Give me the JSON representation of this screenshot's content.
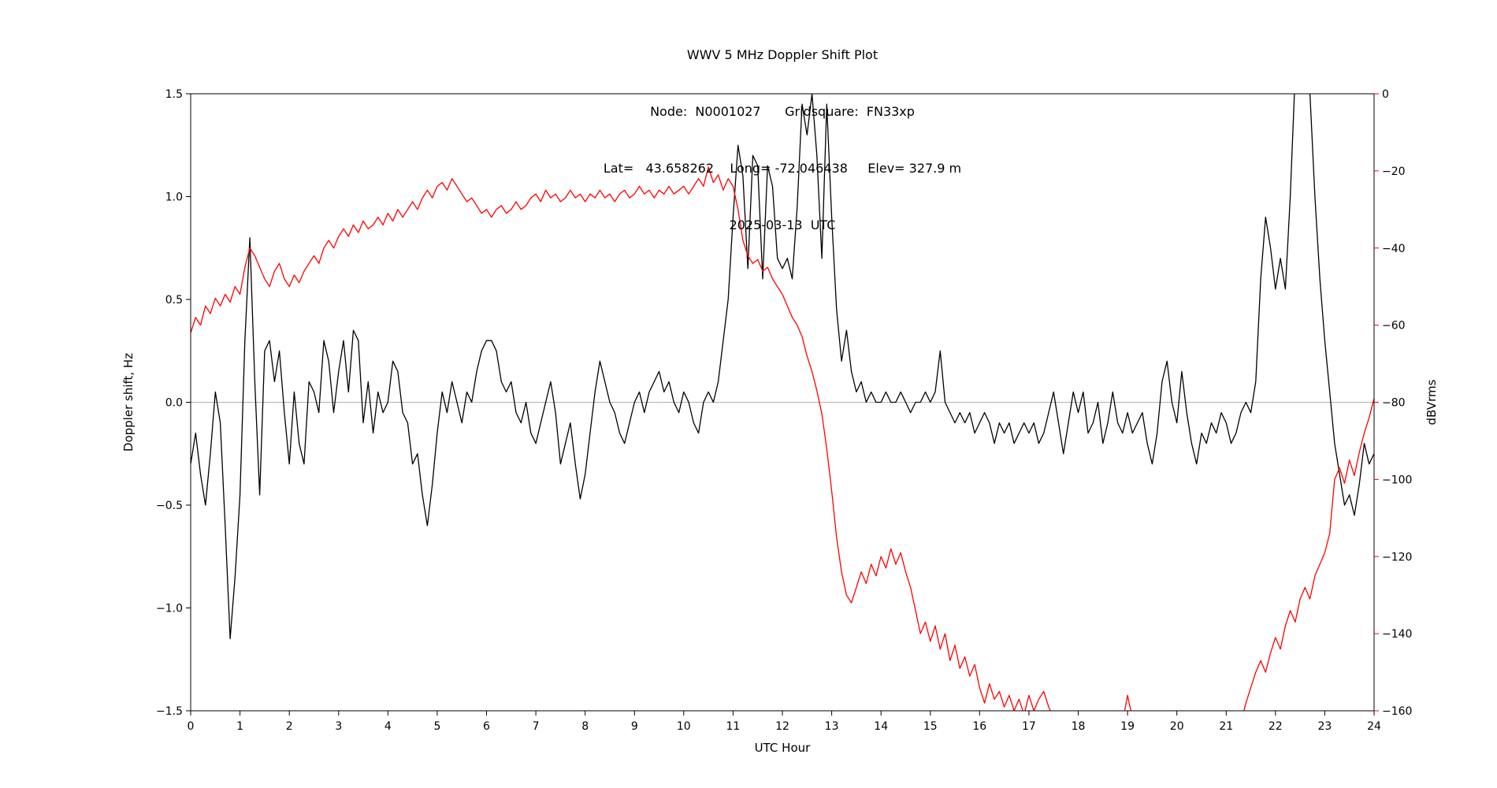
{
  "chart_data": {
    "type": "line",
    "title": "WWV 5 MHz Doppler Shift Plot",
    "title_lines": [
      "WWV 5 MHz Doppler Shift Plot",
      "Node:  N0001027      Gridsquare:  FN33xp",
      "Lat=   43.658262    Long= -72.046438     Elev= 327.9 m",
      "2025-03-13  UTC"
    ],
    "node": "N0001027",
    "gridsquare": "FN33xp",
    "lat": "43.658262",
    "long": "-72.046438",
    "elev": "327.9 m",
    "date": "2025-03-13",
    "timezone": "UTC",
    "xlabel": "UTC Hour",
    "ylabel_left": "Doppler shift, Hz",
    "ylabel_right": "dBVrms",
    "x_range": [
      0,
      24
    ],
    "ylim_left": [
      -1.5,
      1.5
    ],
    "ylim_right": [
      -160,
      0
    ],
    "grid": "single horizontal gray line at 0.0 Hz",
    "legend": "none",
    "x_ticks": [
      0,
      1,
      2,
      3,
      4,
      5,
      6,
      7,
      8,
      9,
      10,
      11,
      12,
      13,
      14,
      15,
      16,
      17,
      18,
      19,
      20,
      21,
      22,
      23,
      24
    ],
    "x_tick_labels": [
      "0",
      "1",
      "2",
      "3",
      "4",
      "5",
      "6",
      "7",
      "8",
      "9",
      "10",
      "11",
      "12",
      "13",
      "14",
      "15",
      "16",
      "17",
      "18",
      "19",
      "20",
      "21",
      "22",
      "23",
      "24"
    ],
    "y_ticks_left": [
      1.5,
      1.0,
      0.5,
      0.0,
      -0.5,
      -1.0,
      -1.5
    ],
    "y_tick_labels_left": [
      "1.5",
      "1.0",
      "0.5",
      "0.0",
      "−0.5",
      "−1.0",
      "−1.5"
    ],
    "y_ticks_right": [
      0,
      -20,
      -40,
      -60,
      -80,
      -100,
      -120,
      -140,
      -160
    ],
    "y_tick_labels_right": [
      "0",
      "−20",
      "−40",
      "−60",
      "−80",
      "−100",
      "−120",
      "−140",
      "−160"
    ],
    "colors": {
      "doppler": "#000000",
      "dbvrms": "#ff0000",
      "zero_line": "#b0b0b0",
      "frame": "#000000"
    },
    "x_hours": {
      "start": 0,
      "step": 0.1,
      "count": 241
    },
    "series": [
      {
        "id": "doppler-shift",
        "name": "Doppler shift, Hz",
        "axis": "left",
        "color": "#000000",
        "values": [
          -0.3,
          -0.15,
          -0.35,
          -0.5,
          -0.25,
          0.05,
          -0.1,
          -0.6,
          -1.15,
          -0.85,
          -0.45,
          0.3,
          0.8,
          0.1,
          -0.45,
          0.25,
          0.3,
          0.1,
          0.25,
          -0.05,
          -0.3,
          0.05,
          -0.2,
          -0.3,
          0.1,
          0.05,
          -0.05,
          0.3,
          0.2,
          -0.05,
          0.15,
          0.3,
          0.05,
          0.35,
          0.3,
          -0.1,
          0.1,
          -0.15,
          0.05,
          -0.05,
          0,
          0.2,
          0.15,
          -0.05,
          -0.1,
          -0.3,
          -0.25,
          -0.45,
          -0.6,
          -0.4,
          -0.15,
          0.05,
          -0.05,
          0.1,
          0,
          -0.1,
          0.05,
          0,
          0.15,
          0.25,
          0.3,
          0.3,
          0.25,
          0.1,
          0.05,
          0.1,
          -0.05,
          -0.1,
          0,
          -0.15,
          -0.2,
          -0.1,
          0,
          0.1,
          -0.05,
          -0.3,
          -0.2,
          -0.1,
          -0.3,
          -0.47,
          -0.35,
          -0.15,
          0.05,
          0.2,
          0.1,
          0,
          -0.05,
          -0.15,
          -0.2,
          -0.1,
          0,
          0.05,
          -0.05,
          0.05,
          0.1,
          0.15,
          0.05,
          0.1,
          0,
          -0.05,
          0.05,
          0,
          -0.1,
          -0.15,
          0,
          0.05,
          0,
          0.1,
          0.3,
          0.5,
          0.9,
          1.25,
          1.1,
          0.65,
          1.2,
          1.15,
          0.6,
          1.15,
          1.05,
          0.7,
          0.65,
          0.7,
          0.6,
          0.95,
          1.45,
          1.3,
          1.5,
          1.2,
          0.7,
          1.45,
          0.9,
          0.45,
          0.2,
          0.35,
          0.15,
          0.05,
          0.1,
          0,
          0.05,
          0,
          0,
          0.05,
          0,
          0,
          0.05,
          0,
          -0.05,
          0,
          0,
          0.05,
          0,
          0.05,
          0.25,
          0,
          -0.05,
          -0.1,
          -0.05,
          -0.1,
          -0.05,
          -0.15,
          -0.1,
          -0.05,
          -0.1,
          -0.2,
          -0.1,
          -0.15,
          -0.1,
          -0.2,
          -0.15,
          -0.1,
          -0.15,
          -0.1,
          -0.2,
          -0.15,
          -0.05,
          0.05,
          -0.1,
          -0.25,
          -0.1,
          0.05,
          -0.05,
          0.05,
          -0.15,
          -0.1,
          0,
          -0.2,
          -0.1,
          0.05,
          -0.1,
          -0.15,
          -0.05,
          -0.15,
          -0.1,
          -0.05,
          -0.2,
          -0.3,
          -0.15,
          0.1,
          0.2,
          0,
          -0.1,
          0.15,
          -0.05,
          -0.2,
          -0.3,
          -0.15,
          -0.2,
          -0.1,
          -0.15,
          -0.05,
          -0.1,
          -0.2,
          -0.15,
          -0.05,
          0,
          -0.05,
          0.1,
          0.6,
          0.9,
          0.75,
          0.55,
          0.7,
          0.55,
          1,
          1.6,
          1.7,
          1.6,
          1.5,
          1,
          0.6,
          0.3,
          0.05,
          -0.2,
          -0.35,
          -0.5,
          -0.45,
          -0.55,
          -0.4,
          -0.2,
          -0.3,
          -0.25
        ]
      },
      {
        "id": "dbvrms",
        "name": "dBVrms",
        "axis": "right",
        "color": "#ff0000",
        "values": [
          -62,
          -58,
          -60,
          -55,
          -57,
          -53,
          -55,
          -52,
          -54,
          -50,
          -52,
          -45,
          -40,
          -42,
          -45,
          -48,
          -50,
          -46,
          -44,
          -48,
          -50,
          -47,
          -49,
          -46,
          -44,
          -42,
          -44,
          -40,
          -38,
          -40,
          -37,
          -35,
          -37,
          -34,
          -36,
          -33,
          -35,
          -34,
          -32,
          -34,
          -31,
          -33,
          -30,
          -32,
          -30,
          -28,
          -30,
          -27,
          -25,
          -27,
          -24,
          -23,
          -25,
          -22,
          -24,
          -26,
          -28,
          -27,
          -29,
          -31,
          -30,
          -32,
          -30,
          -29,
          -31,
          -30,
          -28,
          -30,
          -29,
          -27,
          -26,
          -28,
          -25,
          -27,
          -26,
          -28,
          -27,
          -25,
          -27,
          -26,
          -28,
          -26,
          -27,
          -25,
          -27,
          -26,
          -28,
          -26,
          -25,
          -27,
          -26,
          -24,
          -26,
          -25,
          -27,
          -25,
          -26,
          -24,
          -26,
          -25,
          -24,
          -26,
          -24,
          -22,
          -24,
          -19,
          -23,
          -21,
          -25,
          -22,
          -24,
          -30,
          -38,
          -42,
          -44,
          -43,
          -46,
          -45,
          -48,
          -50,
          -52,
          -55,
          -58,
          -60,
          -63,
          -68,
          -72,
          -77,
          -83,
          -92,
          -103,
          -115,
          -124,
          -130,
          -132,
          -128,
          -124,
          -127,
          -122,
          -125,
          -120,
          -123,
          -118,
          -122,
          -119,
          -124,
          -128,
          -134,
          -140,
          -137,
          -142,
          -138,
          -144,
          -140,
          -147,
          -143,
          -149,
          -146,
          -151,
          -148,
          -154,
          -158,
          -153,
          -157,
          -155,
          -159,
          -156,
          -160,
          -157,
          -161,
          -156,
          -160,
          -157,
          -155,
          -159,
          -162,
          -165,
          -163,
          -166,
          -164,
          -166,
          -165,
          -167,
          -166,
          -165,
          -167,
          -166,
          -165,
          -166,
          -163,
          -156,
          -162,
          -165,
          -166,
          -167,
          -166,
          -167,
          -166,
          -167,
          -166,
          -167,
          -166,
          -167,
          -166,
          -167,
          -166,
          -167,
          -166,
          -167,
          -166,
          -167,
          -166,
          -165,
          -163,
          -158,
          -154,
          -150,
          -147,
          -150,
          -145,
          -141,
          -144,
          -138,
          -134,
          -137,
          -131,
          -128,
          -131,
          -125,
          -122,
          -119,
          -114,
          -100,
          -97,
          -101,
          -95,
          -99,
          -93,
          -88,
          -84,
          -79
        ]
      }
    ]
  }
}
